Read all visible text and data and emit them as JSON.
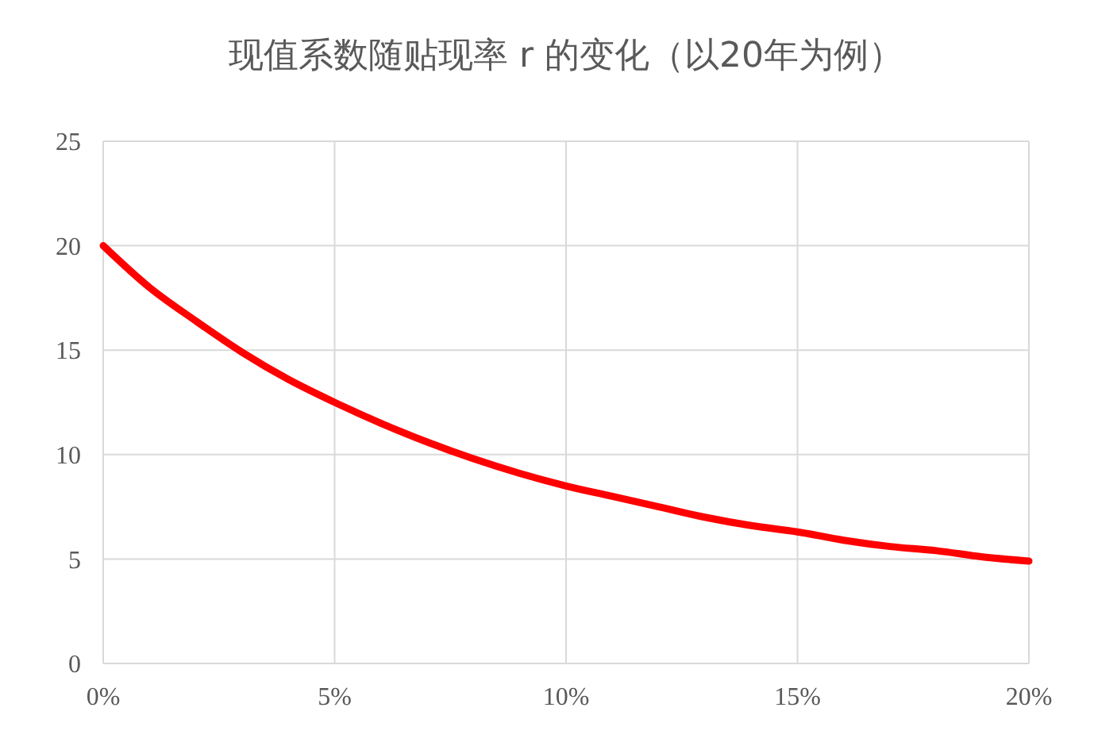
{
  "chart_data": {
    "type": "line",
    "title": "现值系数随贴现率 r 的变化（以20年为例）",
    "x": [
      0,
      1,
      2,
      3,
      4,
      5,
      6,
      7,
      8,
      9,
      10,
      11,
      12,
      13,
      14,
      15,
      16,
      17,
      18,
      19,
      20
    ],
    "series": [
      {
        "color": "#ff0000",
        "values": [
          20,
          18.0,
          16.4,
          14.9,
          13.6,
          12.5,
          11.5,
          10.6,
          9.8,
          9.1,
          8.5,
          8.0,
          7.5,
          7.0,
          6.6,
          6.3,
          5.9,
          5.6,
          5.4,
          5.1,
          4.9
        ]
      }
    ],
    "xlim": [
      0,
      20
    ],
    "xticks": [
      {
        "value": 0,
        "label": "0%"
      },
      {
        "value": 5,
        "label": "5%"
      },
      {
        "value": 10,
        "label": "10%"
      },
      {
        "value": 15,
        "label": "15%"
      },
      {
        "value": 20,
        "label": "20%"
      }
    ],
    "ylim": [
      0,
      25
    ],
    "yticks": [
      0,
      5,
      10,
      15,
      20,
      25
    ],
    "grid": true,
    "marker": "none",
    "line_style": "solid"
  }
}
